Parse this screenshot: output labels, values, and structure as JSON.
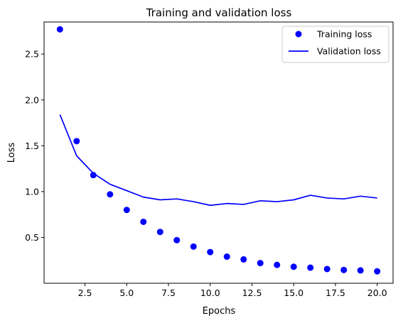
{
  "chart_data": {
    "type": "scatter+line",
    "title": "Training and validation loss",
    "xlabel": "Epochs",
    "ylabel": "Loss",
    "xlim": [
      0.05,
      20.95
    ],
    "ylim": [
      0.0,
      2.85
    ],
    "xticks": [
      2.5,
      5.0,
      7.5,
      10.0,
      12.5,
      15.0,
      17.5,
      20.0
    ],
    "xtick_labels": [
      "2.5",
      "5.0",
      "7.5",
      "10.0",
      "12.5",
      "15.0",
      "17.5",
      "20.0"
    ],
    "yticks": [
      0.5,
      1.0,
      1.5,
      2.0,
      2.5
    ],
    "ytick_labels": [
      "0.5",
      "1.0",
      "1.5",
      "2.0",
      "2.5"
    ],
    "grid": false,
    "legend_position": "top-right",
    "colors": {
      "series": "#0000ff"
    },
    "x": [
      1,
      2,
      3,
      4,
      5,
      6,
      7,
      8,
      9,
      10,
      11,
      12,
      13,
      14,
      15,
      16,
      17,
      18,
      19,
      20
    ],
    "series": [
      {
        "name": "Training loss",
        "style": "dots",
        "values": [
          2.77,
          1.55,
          1.18,
          0.97,
          0.8,
          0.67,
          0.56,
          0.47,
          0.4,
          0.34,
          0.29,
          0.26,
          0.22,
          0.2,
          0.18,
          0.17,
          0.155,
          0.145,
          0.14,
          0.13
        ]
      },
      {
        "name": "Validation loss",
        "style": "line",
        "values": [
          1.84,
          1.39,
          1.2,
          1.08,
          1.01,
          0.94,
          0.91,
          0.92,
          0.89,
          0.85,
          0.87,
          0.86,
          0.9,
          0.89,
          0.91,
          0.96,
          0.93,
          0.92,
          0.95,
          0.93
        ]
      }
    ]
  }
}
